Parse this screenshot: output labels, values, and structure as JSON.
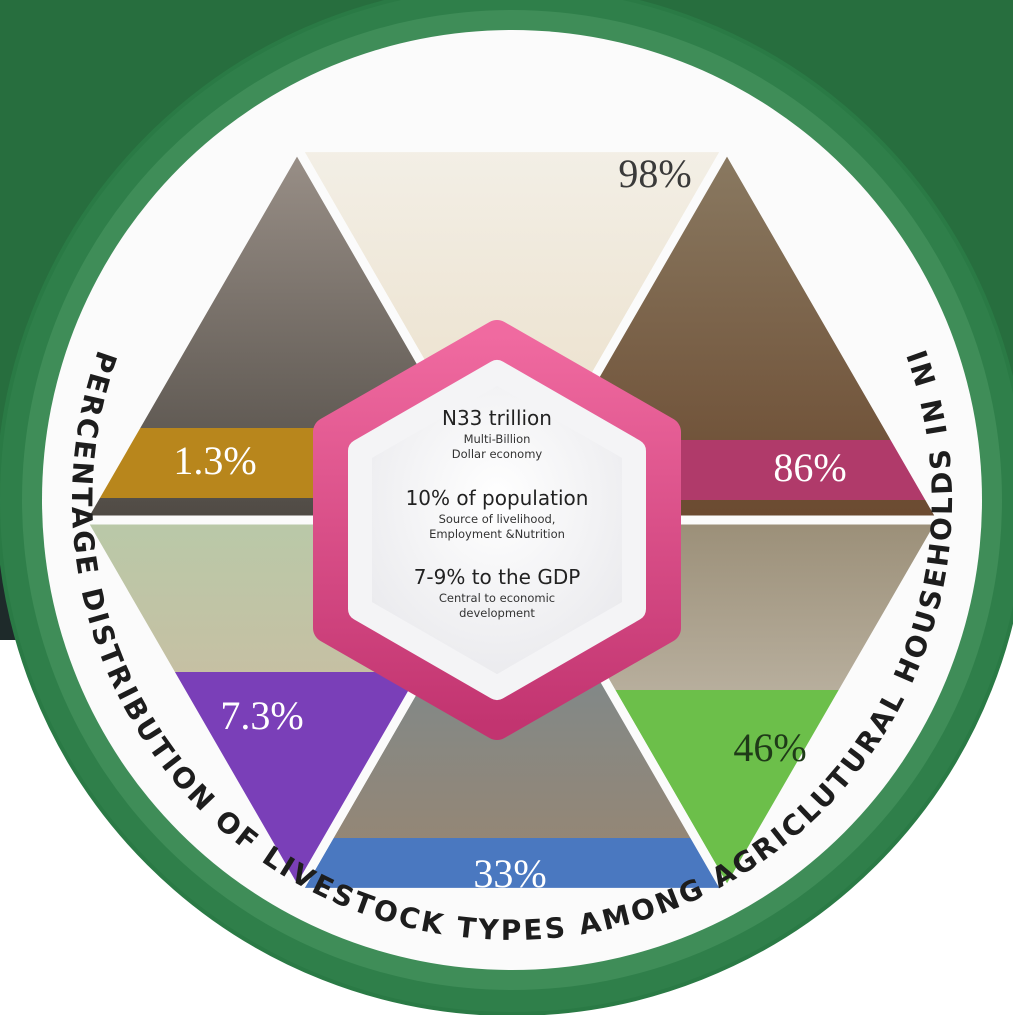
{
  "title": "PERCENTAGE DISTRIBUTION OF LIVESTOCK TYPES AMONG AGRICLUTURAL HOUSEHOLDS IN NIGERIA",
  "segments": [
    "98%",
    "86%",
    "46%",
    "33%",
    "7.3%",
    "1.3%"
  ],
  "center": [
    {
      "heading": "N33 trillion",
      "lines": [
        "Multi-Billion",
        "Dollar economy"
      ]
    },
    {
      "heading": "10% of population",
      "lines": [
        "Source of livelihood,",
        "Employment &Nutrition"
      ]
    },
    {
      "heading": "7-9% to the GDP",
      "lines": [
        "Central to economic",
        "development"
      ]
    }
  ]
}
